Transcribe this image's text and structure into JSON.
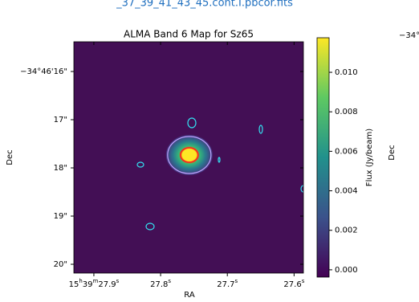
{
  "header": {
    "link": "_37_39_41_43_45.cont.I.pbcor.fits"
  },
  "side": {
    "tick": "−34°",
    "label": "Dec"
  },
  "chart_data": {
    "type": "image",
    "title": "ALMA Band 6 Map for Sz65",
    "x_label": "RA",
    "y_label": "Dec",
    "xlim": [
      27.93,
      27.586
    ],
    "xticks": [
      {
        "value": 27.9,
        "label": "15h39m27.9s"
      },
      {
        "value": 27.8,
        "label": "27.8s"
      },
      {
        "value": 27.7,
        "label": "27.7s"
      },
      {
        "value": 27.6,
        "label": "27.6s"
      }
    ],
    "ylim": [
      20.183,
      15.383
    ],
    "yticks": [
      {
        "value": 16,
        "label": "−34°46'16\""
      },
      {
        "value": 17,
        "label": "17\""
      },
      {
        "value": 18,
        "label": "18\""
      },
      {
        "value": 19,
        "label": "19\""
      },
      {
        "value": 20,
        "label": "20\""
      }
    ],
    "colorbar": {
      "label": "Flux (Jy/beam)",
      "lim": [
        -0.00037,
        0.01175
      ],
      "ticks": [
        {
          "value": 0,
          "label": "0.000"
        },
        0.002,
        0.004,
        0.006,
        0.008,
        0.01
      ]
    },
    "source": {
      "ra": 27.757,
      "dec": 17.733,
      "peak": 0.0115
    }
  }
}
